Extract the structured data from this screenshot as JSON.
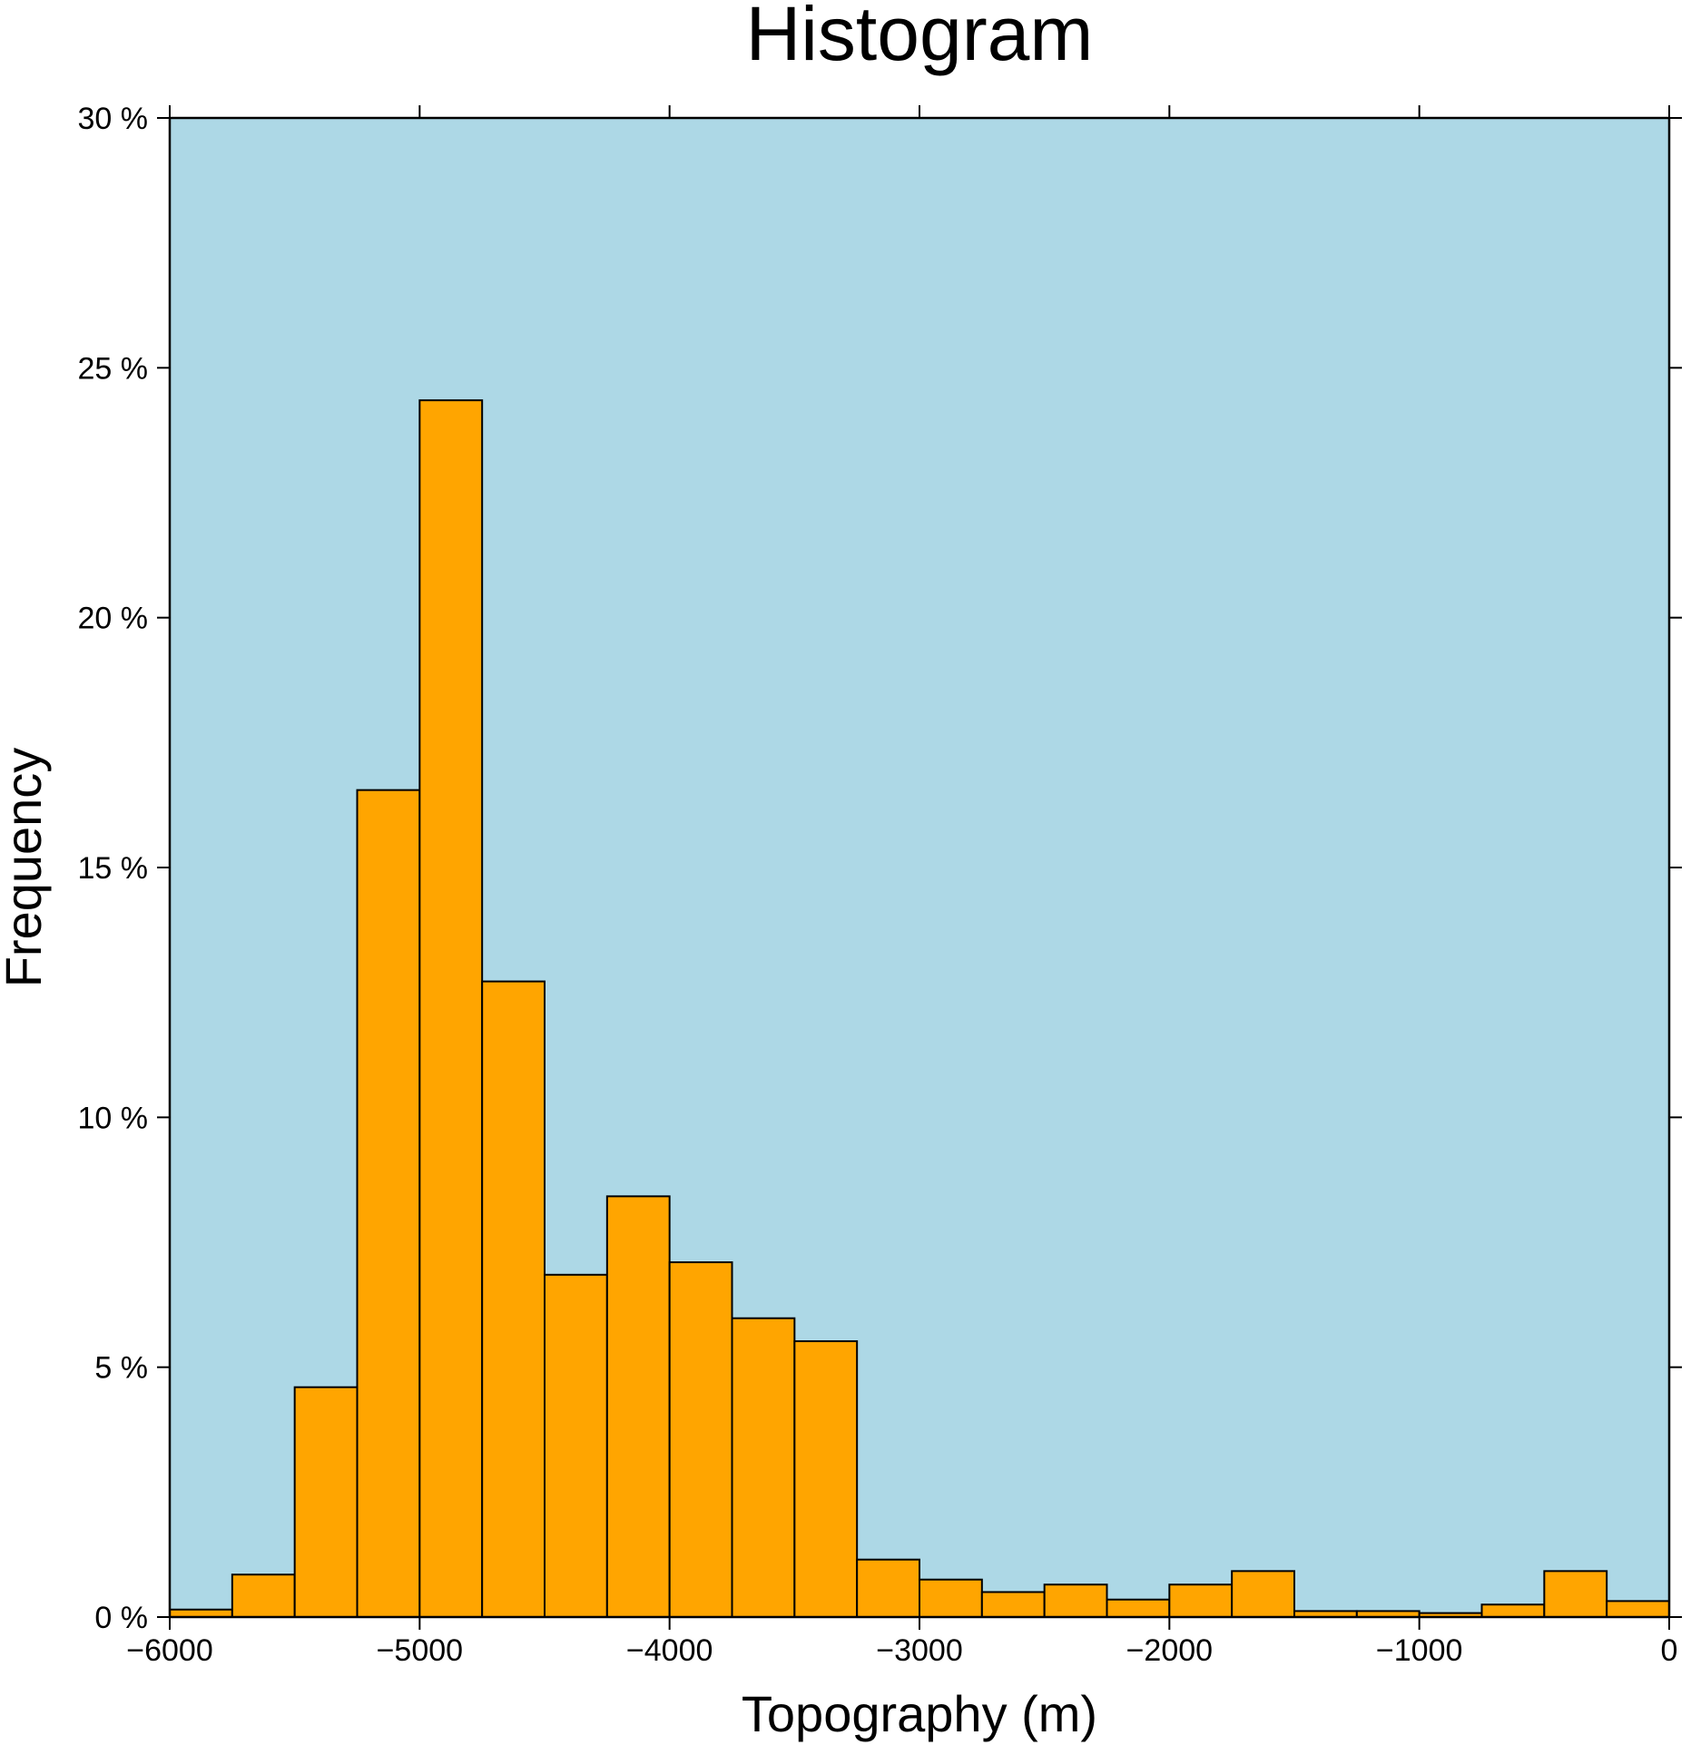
{
  "chart_data": {
    "type": "bar",
    "title": "Histogram",
    "xlabel": "Topography (m)",
    "ylabel": "Frequency",
    "xlim": [
      -6000,
      0
    ],
    "ylim": [
      0,
      30
    ],
    "bin_width": 250,
    "x_ticks": [
      -6000,
      -5000,
      -4000,
      -3000,
      -2000,
      -1000,
      0
    ],
    "x_tick_labels": [
      "−6000",
      "−5000",
      "−4000",
      "−3000",
      "−2000",
      "−1000",
      "0"
    ],
    "y_ticks": [
      0,
      5,
      10,
      15,
      20,
      25,
      30
    ],
    "y_tick_labels": [
      "0 %",
      "5 %",
      "10 %",
      "15 %",
      "20 %",
      "25 %",
      "30 %"
    ],
    "bins": [
      {
        "start": -6000,
        "end": -5750,
        "value": 0.15
      },
      {
        "start": -5750,
        "end": -5500,
        "value": 0.85
      },
      {
        "start": -5500,
        "end": -5250,
        "value": 4.6
      },
      {
        "start": -5250,
        "end": -5000,
        "value": 16.55
      },
      {
        "start": -5000,
        "end": -4750,
        "value": 24.35
      },
      {
        "start": -4750,
        "end": -4500,
        "value": 12.72
      },
      {
        "start": -4500,
        "end": -4250,
        "value": 6.85
      },
      {
        "start": -4250,
        "end": -4000,
        "value": 8.42
      },
      {
        "start": -4000,
        "end": -3750,
        "value": 7.1
      },
      {
        "start": -3750,
        "end": -3500,
        "value": 5.98
      },
      {
        "start": -3500,
        "end": -3250,
        "value": 5.52
      },
      {
        "start": -3250,
        "end": -3000,
        "value": 1.15
      },
      {
        "start": -3000,
        "end": -2750,
        "value": 0.75
      },
      {
        "start": -2750,
        "end": -2500,
        "value": 0.5
      },
      {
        "start": -2500,
        "end": -2250,
        "value": 0.65
      },
      {
        "start": -2250,
        "end": -2000,
        "value": 0.35
      },
      {
        "start": -2000,
        "end": -1750,
        "value": 0.65
      },
      {
        "start": -1750,
        "end": -1500,
        "value": 0.92
      },
      {
        "start": -1500,
        "end": -1250,
        "value": 0.12
      },
      {
        "start": -1250,
        "end": -1000,
        "value": 0.12
      },
      {
        "start": -1000,
        "end": -750,
        "value": 0.08
      },
      {
        "start": -750,
        "end": -500,
        "value": 0.25
      },
      {
        "start": -500,
        "end": -250,
        "value": 0.92
      },
      {
        "start": -250,
        "end": 0,
        "value": 0.32
      }
    ],
    "colors": {
      "plot_background": "#add8e6",
      "bar_fill": "#ffa500",
      "bar_stroke": "#000000",
      "frame": "#000000"
    },
    "grid": false,
    "legend": "none"
  }
}
